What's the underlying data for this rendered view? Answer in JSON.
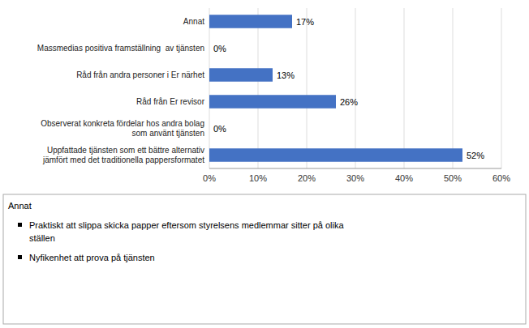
{
  "chart_data": {
    "type": "bar",
    "orientation": "horizontal",
    "categories": [
      "Uppfattade tjänsten som ett bättre alternativ\njämfört med det traditionella pappersformatet",
      "Observerat konkreta fördelar hos andra bolag\nsom använt tjänsten",
      "Råd från Er revisor",
      "Råd från andra personer i Er närhet",
      "Massmedias positiva framställning  av tjänsten",
      "Annat"
    ],
    "values": [
      52,
      0,
      26,
      13,
      0,
      17
    ],
    "value_labels": [
      "52%",
      "0%",
      "26%",
      "13%",
      "0%",
      "17%"
    ],
    "data_labels": true,
    "color": "#4472C4",
    "xlim": [
      0,
      60
    ],
    "xticks": [
      {
        "value": 0,
        "label": "0%"
      },
      {
        "value": 10,
        "label": "10%"
      },
      {
        "value": 20,
        "label": "20%"
      },
      {
        "value": 30,
        "label": "30%"
      },
      {
        "value": 40,
        "label": "40%"
      },
      {
        "value": 50,
        "label": "50%"
      },
      {
        "value": 60,
        "label": "60%"
      }
    ],
    "grid": true,
    "annotation_title": "Annat",
    "annotations": [
      "Praktiskt att slippa skicka papper eftersom styrelsens medlemmar sitter på olika\nställen",
      "Nyfikenhet att prova på tjänsten"
    ]
  }
}
